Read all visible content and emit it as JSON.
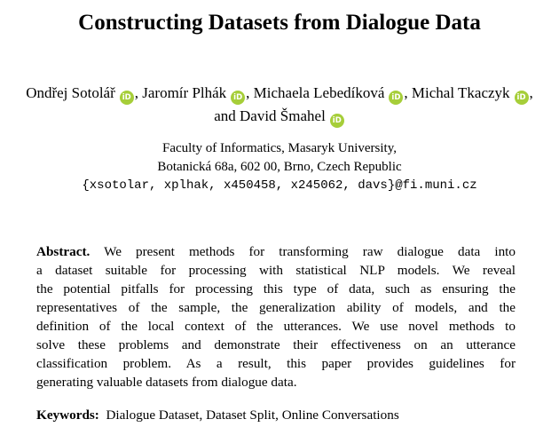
{
  "paper": {
    "title": "Constructing Datasets from Dialogue Data",
    "authors": [
      {
        "name": "Ondřej Sotolář",
        "orcid": "iD",
        "sep": ", "
      },
      {
        "name": "Jaromír Plhák",
        "orcid": "iD",
        "sep": ", "
      },
      {
        "name": "Michaela Lebedíková",
        "orcid": "iD",
        "sep": ", "
      },
      {
        "name": "Michal Tkaczyk",
        "orcid": "iD",
        "sep": ", and "
      },
      {
        "name": "David Šmahel",
        "orcid": "iD",
        "sep": ""
      }
    ],
    "affiliation": {
      "line1": "Faculty of Informatics, Masaryk University,",
      "line2": "Botanická 68a, 602 00, Brno, Czech Republic",
      "email": "{xsotolar, xplhak, x450458, x245062, davs}@fi.muni.cz"
    },
    "abstract": {
      "label": "Abstract.",
      "lines": [
        " We present methods for transforming raw dialogue data into",
        "a dataset suitable for processing with statistical NLP models. We reveal",
        "the potential pitfalls for processing this type of data, such as ensuring the",
        "representatives of the sample, the generalization ability of models, and the",
        "definition of the local context of the utterances. We use novel methods to",
        "solve these problems and demonstrate their effectiveness on an utterance",
        "classification problem. As a result, this paper provides guidelines for",
        "generating valuable datasets from dialogue data."
      ]
    },
    "keywords": {
      "label": "Keywords:",
      "text": "Dialogue Dataset, Dataset Split, Online Conversations"
    }
  }
}
